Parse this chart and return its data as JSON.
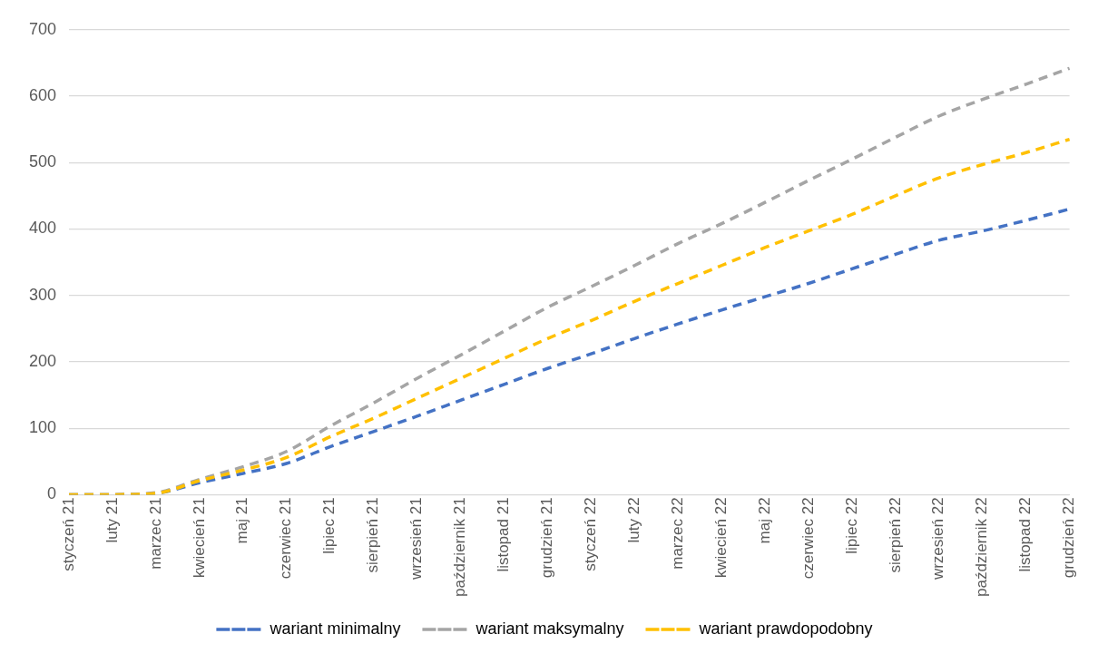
{
  "chart_data": {
    "type": "line",
    "categories": [
      "styczeń 21",
      "luty 21",
      "marzec 21",
      "kwiecień 21",
      "maj 21",
      "czerwiec 21",
      "lipiec 21",
      "sierpień 21",
      "wrzesień 21",
      "październik 21",
      "listopad 21",
      "grudzień 21",
      "styczeń 22",
      "luty 22",
      "marzec 22",
      "kwiecień 22",
      "maj 22",
      "czerwiec 22",
      "lipiec 22",
      "sierpień 22",
      "wrzesień 22",
      "październik 22",
      "listopad 22",
      "grudzień 22"
    ],
    "series": [
      {
        "name": "wariant minimalny",
        "color": "#4472c4",
        "values": [
          0,
          0,
          2,
          18,
          32,
          47,
          72,
          95,
          118,
          142,
          166,
          190,
          212,
          235,
          257,
          278,
          298,
          318,
          340,
          362,
          383,
          397,
          413,
          430
        ]
      },
      {
        "name": "wariant maksymalny",
        "color": "#a5a5a5",
        "values": [
          0,
          0,
          3,
          23,
          42,
          65,
          103,
          138,
          175,
          210,
          246,
          282,
          313,
          345,
          378,
          408,
          440,
          473,
          505,
          538,
          570,
          595,
          618,
          642
        ]
      },
      {
        "name": "wariant prawdopodobny",
        "color": "#ffc000",
        "values": [
          0,
          0,
          2,
          21,
          37,
          56,
          87,
          115,
          145,
          175,
          205,
          235,
          262,
          291,
          318,
          345,
          372,
          397,
          422,
          450,
          477,
          497,
          515,
          535
        ]
      }
    ],
    "ylim": [
      0,
      700
    ],
    "yticks": [
      0,
      100,
      200,
      300,
      400,
      500,
      600,
      700
    ],
    "grid": "y",
    "legend": "bottom",
    "line_style": "dashed",
    "marker": "none"
  }
}
